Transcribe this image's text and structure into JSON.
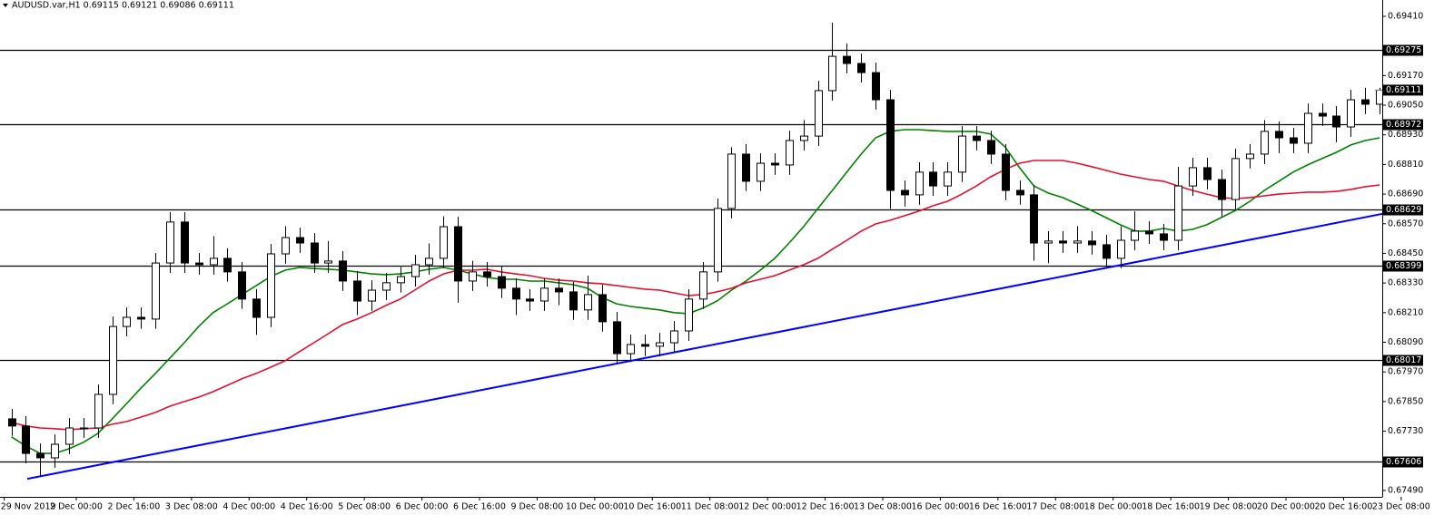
{
  "chart_data": {
    "type": "candlestick",
    "title": "AUDUSD.var,H1  0.69115 0.69121 0.69086 0.69111",
    "xlim": [
      0,
      96
    ],
    "ylim": [
      0.67464,
      0.69476
    ],
    "open": [
      0.6778,
      0.67751,
      0.6764,
      0.67622,
      0.67677,
      0.67743,
      0.67743,
      0.67879,
      0.68154,
      0.68191,
      0.68184,
      0.68411,
      0.68577,
      0.68411,
      0.68404,
      0.6843,
      0.68375,
      0.68265,
      0.68191,
      0.68448,
      0.68514,
      0.68492,
      0.68411,
      0.68419,
      0.68338,
      0.68257,
      0.68301,
      0.68331,
      0.68356,
      0.68404,
      0.6843,
      0.68558,
      0.68338,
      0.68375,
      0.68356,
      0.68309,
      0.68265,
      0.68257,
      0.68309,
      0.68294,
      0.68221,
      0.68283,
      0.68173,
      0.68044,
      0.68081,
      0.68074,
      0.68088,
      0.68136,
      0.68265,
      0.68375,
      0.68632,
      0.68852,
      0.68742,
      0.68815,
      0.68808,
      0.68907,
      0.68925,
      0.69109,
      0.69248,
      0.69219,
      0.69182,
      0.69072,
      0.68705,
      0.68687,
      0.68779,
      0.68723,
      0.68779,
      0.68925,
      0.68907,
      0.68852,
      0.68705,
      0.68687,
      0.68492,
      0.685,
      0.68492,
      0.685,
      0.68485,
      0.6843,
      0.68503,
      0.6854,
      0.68529,
      0.68503,
      0.68723,
      0.68797,
      0.68749,
      0.68668,
      0.68834,
      0.68852,
      0.68944,
      0.68918,
      0.68896,
      0.69017,
      0.69006,
      0.68962,
      0.69072,
      0.69054
    ],
    "high": [
      0.6782,
      0.67791,
      0.6768,
      0.67717,
      0.67783,
      0.67783,
      0.67919,
      0.68194,
      0.68231,
      0.68231,
      0.68451,
      0.68617,
      0.68617,
      0.68451,
      0.6852,
      0.6847,
      0.68415,
      0.68305,
      0.68488,
      0.6856,
      0.68554,
      0.68532,
      0.685,
      0.68459,
      0.68378,
      0.68341,
      0.68371,
      0.68396,
      0.68444,
      0.6849,
      0.686,
      0.68598,
      0.6842,
      0.68415,
      0.68396,
      0.68349,
      0.68305,
      0.68349,
      0.68349,
      0.68334,
      0.6836,
      0.68323,
      0.68213,
      0.68121,
      0.68121,
      0.68128,
      0.68176,
      0.68305,
      0.68415,
      0.68672,
      0.6888,
      0.68892,
      0.68855,
      0.68855,
      0.68947,
      0.6899,
      0.69149,
      0.69384,
      0.693,
      0.69259,
      0.69222,
      0.69112,
      0.68745,
      0.68819,
      0.68819,
      0.68819,
      0.68965,
      0.68965,
      0.68947,
      0.68892,
      0.68745,
      0.68727,
      0.6854,
      0.6854,
      0.6856,
      0.6854,
      0.68525,
      0.6856,
      0.6862,
      0.6858,
      0.68569,
      0.688,
      0.68837,
      0.68837,
      0.68789,
      0.68874,
      0.68892,
      0.6899,
      0.68984,
      0.68958,
      0.69057,
      0.69057,
      0.69046,
      0.69112,
      0.69121,
      0.69121
    ],
    "low": [
      0.67711,
      0.676,
      0.67549,
      0.67582,
      0.67637,
      0.67703,
      0.67703,
      0.67839,
      0.68114,
      0.68144,
      0.68144,
      0.68371,
      0.68371,
      0.68364,
      0.68364,
      0.68335,
      0.68225,
      0.6812,
      0.68151,
      0.68408,
      0.68452,
      0.68371,
      0.68371,
      0.68298,
      0.682,
      0.68217,
      0.68261,
      0.68291,
      0.68316,
      0.68364,
      0.6839,
      0.6825,
      0.68298,
      0.68316,
      0.68269,
      0.682,
      0.68217,
      0.68217,
      0.6824,
      0.68181,
      0.68181,
      0.68133,
      0.68004,
      0.6801,
      0.68034,
      0.68034,
      0.68048,
      0.68096,
      0.68225,
      0.68335,
      0.68592,
      0.68702,
      0.68702,
      0.68768,
      0.68768,
      0.68867,
      0.68885,
      0.69069,
      0.69179,
      0.69142,
      0.69032,
      0.6863,
      0.6864,
      0.68647,
      0.68683,
      0.68683,
      0.68739,
      0.68867,
      0.68812,
      0.68665,
      0.68647,
      0.6842,
      0.6841,
      0.68452,
      0.68452,
      0.68445,
      0.6839,
      0.6839,
      0.68463,
      0.68489,
      0.68463,
      0.68463,
      0.68683,
      0.68709,
      0.686,
      0.68628,
      0.68794,
      0.68812,
      0.68856,
      0.68856,
      0.68856,
      0.68966,
      0.689,
      0.68922,
      0.69014,
      0.69014
    ],
    "close": [
      0.67751,
      0.6764,
      0.67622,
      0.67677,
      0.67743,
      0.67743,
      0.67879,
      0.68154,
      0.68191,
      0.68184,
      0.68411,
      0.68577,
      0.68411,
      0.68404,
      0.6843,
      0.68375,
      0.68265,
      0.68191,
      0.68448,
      0.68514,
      0.68492,
      0.68411,
      0.68419,
      0.68338,
      0.68257,
      0.68301,
      0.68331,
      0.68356,
      0.68404,
      0.6843,
      0.68558,
      0.68338,
      0.68375,
      0.68356,
      0.68309,
      0.68265,
      0.68257,
      0.68309,
      0.68294,
      0.68221,
      0.68283,
      0.68173,
      0.68044,
      0.68081,
      0.68074,
      0.68088,
      0.68136,
      0.68265,
      0.68375,
      0.68632,
      0.68852,
      0.68742,
      0.68815,
      0.68808,
      0.68907,
      0.68925,
      0.69109,
      0.69248,
      0.69219,
      0.69182,
      0.69072,
      0.68705,
      0.68687,
      0.68779,
      0.68723,
      0.68779,
      0.68925,
      0.68907,
      0.68852,
      0.68705,
      0.68687,
      0.68492,
      0.685,
      0.68492,
      0.685,
      0.68485,
      0.6843,
      0.68503,
      0.6854,
      0.68529,
      0.68503,
      0.68723,
      0.68797,
      0.68749,
      0.68668,
      0.68834,
      0.68852,
      0.68944,
      0.68918,
      0.68896,
      0.69017,
      0.69006,
      0.68962,
      0.69072,
      0.69054,
      0.69111
    ],
    "up_color": "#ffffff",
    "down_color": "#000000",
    "series": [
      {
        "color": "#008000",
        "values": [
          0.67707,
          0.6767,
          0.6764,
          0.6764,
          0.67659,
          0.67685,
          0.67721,
          0.6778,
          0.67842,
          0.67905,
          0.67964,
          0.68026,
          0.68088,
          0.68154,
          0.6821,
          0.68246,
          0.68283,
          0.6832,
          0.68356,
          0.68382,
          0.68393,
          0.68389,
          0.68386,
          0.68382,
          0.68375,
          0.68367,
          0.68364,
          0.68367,
          0.68375,
          0.68386,
          0.68393,
          0.68382,
          0.68367,
          0.68353,
          0.68345,
          0.68345,
          0.68338,
          0.68338,
          0.68331,
          0.68323,
          0.68309,
          0.68272,
          0.68246,
          0.68235,
          0.68228,
          0.68221,
          0.6821,
          0.68206,
          0.68228,
          0.68257,
          0.68301,
          0.68338,
          0.68382,
          0.6843,
          0.68492,
          0.68558,
          0.68632,
          0.68705,
          0.68779,
          0.68852,
          0.68918,
          0.68944,
          0.68951,
          0.68951,
          0.68947,
          0.68944,
          0.68944,
          0.68944,
          0.68933,
          0.68881,
          0.68797,
          0.68723,
          0.68694,
          0.68676,
          0.6865,
          0.68624,
          0.68595,
          0.68566,
          0.6854,
          0.6854,
          0.68551,
          0.6854,
          0.68547,
          0.68566,
          0.68595,
          0.68624,
          0.68661,
          0.68705,
          0.68742,
          0.68779,
          0.68808,
          0.68834,
          0.68859,
          0.68889,
          0.68907,
          0.68918
        ]
      },
      {
        "color": "#e0102e",
        "values": [
          0.67765,
          0.67751,
          0.67743,
          0.6774,
          0.67736,
          0.6774,
          0.67743,
          0.67758,
          0.67769,
          0.67787,
          0.67806,
          0.67831,
          0.6785,
          0.67868,
          0.6789,
          0.67916,
          0.67942,
          0.67964,
          0.67989,
          0.68015,
          0.68052,
          0.68088,
          0.68125,
          0.68162,
          0.68184,
          0.6821,
          0.68239,
          0.68265,
          0.68301,
          0.68338,
          0.68367,
          0.68382,
          0.68382,
          0.68386,
          0.68375,
          0.68367,
          0.6836,
          0.68349,
          0.68342,
          0.68338,
          0.68331,
          0.68327,
          0.6832,
          0.68312,
          0.68305,
          0.68301,
          0.6829,
          0.68279,
          0.68283,
          0.68294,
          0.68309,
          0.68331,
          0.68345,
          0.6836,
          0.68382,
          0.68404,
          0.6843,
          0.68467,
          0.68503,
          0.6854,
          0.68569,
          0.68584,
          0.68602,
          0.68621,
          0.68643,
          0.68661,
          0.6869,
          0.68723,
          0.6876,
          0.6879,
          0.68815,
          0.68826,
          0.68826,
          0.68826,
          0.68815,
          0.68801,
          0.68786,
          0.68771,
          0.6876,
          0.68749,
          0.68742,
          0.68723,
          0.68705,
          0.6869,
          0.68676,
          0.68672,
          0.68676,
          0.68683,
          0.6869,
          0.68694,
          0.68698,
          0.68698,
          0.68701,
          0.68709,
          0.6872,
          0.68727
        ]
      }
    ],
    "trendline": {
      "color": "#0000ff",
      "x": [
        1.6,
        95.7
      ],
      "values": [
        0.67537,
        0.6861
      ]
    },
    "levels": [
      {
        "value": 0.69275,
        "label": "0.69275"
      },
      {
        "value": 0.68972,
        "label": "0.68972"
      },
      {
        "value": 0.68629,
        "label": "0.68629"
      },
      {
        "value": 0.68399,
        "label": "0.68399"
      },
      {
        "value": 0.68017,
        "label": "0.68017"
      },
      {
        "value": 0.67606,
        "label": "0.67606"
      }
    ],
    "current_price": {
      "value": 0.69111,
      "label": "0.69111"
    },
    "yticks": [
      {
        "value": 0.6941,
        "label": "0.69410"
      },
      {
        "value": 0.6917,
        "label": "0.69170"
      },
      {
        "value": 0.6905,
        "label": "0.69050"
      },
      {
        "value": 0.6893,
        "label": "0.68930"
      },
      {
        "value": 0.6881,
        "label": "0.68810"
      },
      {
        "value": 0.6869,
        "label": "0.68690"
      },
      {
        "value": 0.6857,
        "label": "0.68570"
      },
      {
        "value": 0.6845,
        "label": "0.68450"
      },
      {
        "value": 0.6833,
        "label": "0.68330"
      },
      {
        "value": 0.6821,
        "label": "0.68210"
      },
      {
        "value": 0.6809,
        "label": "0.68090"
      },
      {
        "value": 0.6797,
        "label": "0.67970"
      },
      {
        "value": 0.6785,
        "label": "0.67850"
      },
      {
        "value": 0.6773,
        "label": "0.67730"
      },
      {
        "value": 0.6749,
        "label": "0.67490"
      }
    ],
    "xticks": [
      {
        "value": 0,
        "label": "29 Nov 2019"
      },
      {
        "value": 5,
        "label": "2 Dec 00:00"
      },
      {
        "value": 9,
        "label": "2 Dec 16:00"
      },
      {
        "value": 13,
        "label": "3 Dec 08:00"
      },
      {
        "value": 17,
        "label": "4 Dec 00:00"
      },
      {
        "value": 21,
        "label": "4 Dec 16:00"
      },
      {
        "value": 25,
        "label": "5 Dec 08:00"
      },
      {
        "value": 29,
        "label": "6 Dec 00:00"
      },
      {
        "value": 33,
        "label": "6 Dec 16:00"
      },
      {
        "value": 37,
        "label": "9 Dec 08:00"
      },
      {
        "value": 41,
        "label": "10 Dec 00:00"
      },
      {
        "value": 45,
        "label": "10 Dec 16:00"
      },
      {
        "value": 49,
        "label": "11 Dec 08:00"
      },
      {
        "value": 53,
        "label": "12 Dec 00:00"
      },
      {
        "value": 57,
        "label": "12 Dec 16:00"
      },
      {
        "value": 61,
        "label": "13 Dec 08:00"
      },
      {
        "value": 65,
        "label": "16 Dec 00:00"
      },
      {
        "value": 69,
        "label": "16 Dec 16:00"
      },
      {
        "value": 73,
        "label": "17 Dec 08:00"
      },
      {
        "value": 77,
        "label": "18 Dec 00:00"
      },
      {
        "value": 81,
        "label": "18 Dec 16:00"
      },
      {
        "value": 85,
        "label": "19 Dec 08:00"
      },
      {
        "value": 89,
        "label": "20 Dec 00:00"
      },
      {
        "value": 93,
        "label": "20 Dec 16:00"
      },
      {
        "value": 97,
        "label": "23 Dec 08:00"
      }
    ]
  }
}
